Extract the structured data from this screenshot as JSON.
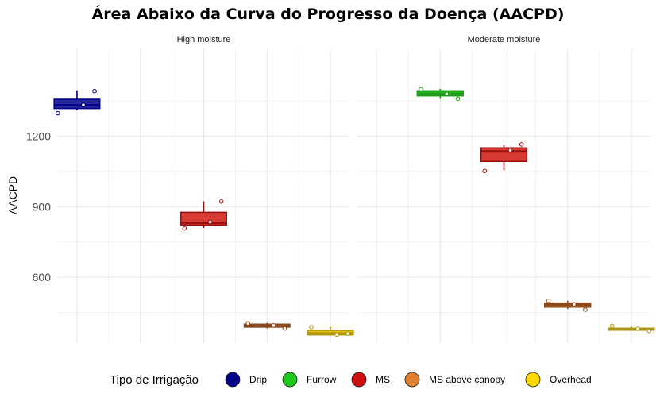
{
  "title": "Área Abaixo da Curva do Progresso da Doença (AACPD)",
  "chart_data": {
    "type": "boxplot",
    "ylabel": "AACPD",
    "xlabel": "",
    "ylim": [
      320,
      1570
    ],
    "yticks": [
      600,
      900,
      1200
    ],
    "grid": true,
    "legend_position": "bottom",
    "legend_title": "Tipo de Irrigação",
    "categories": [
      "Drip",
      "Furrow",
      "MS",
      "MS above canopy",
      "Overhead"
    ],
    "colors": {
      "Drip": {
        "fill": "#27279a",
        "line": "#00008b",
        "legend": "#00008b"
      },
      "Furrow": {
        "fill": "#23b01f",
        "line": "#1c9a18",
        "legend": "#1ec81a"
      },
      "MS": {
        "fill": "#d63a33",
        "line": "#9b0f0f",
        "legend": "#cc1010"
      },
      "MS above canopy": {
        "fill": "#c06a28",
        "line": "#8a4a1c",
        "legend": "#e0802e"
      },
      "Overhead": {
        "fill": "#e2c20c",
        "line": "#b09510",
        "legend": "#ffd800"
      }
    },
    "panels": [
      {
        "name": "High moisture",
        "boxes": [
          {
            "group": "Drip",
            "min": 1310,
            "q1": 1318,
            "median": 1332,
            "q3": 1357,
            "max": 1395,
            "points": [
              1298,
              1392,
              1333
            ]
          },
          {
            "group": "MS",
            "min": 810,
            "q1": 822,
            "median": 832,
            "q3": 876,
            "max": 923,
            "points": [
              808,
              922,
              835
            ]
          },
          {
            "group": "MS above canopy",
            "min": 382,
            "q1": 388,
            "median": 393,
            "q3": 400,
            "max": 406,
            "points": [
              404,
              382,
              395
            ]
          },
          {
            "group": "Overhead",
            "min": 352,
            "q1": 355,
            "median": 361,
            "q3": 374,
            "max": 389,
            "points": [
              388,
              360,
              356
            ]
          }
        ]
      },
      {
        "name": "Moderate moisture",
        "boxes": [
          {
            "group": "Furrow",
            "min": 1359,
            "q1": 1372,
            "median": 1378,
            "q3": 1393,
            "max": 1402,
            "points": [
              1400,
              1359,
              1380
            ]
          },
          {
            "group": "MS",
            "min": 1055,
            "q1": 1093,
            "median": 1135,
            "q3": 1150,
            "max": 1165,
            "points": [
              1052,
              1165,
              1140
            ]
          },
          {
            "group": "MS above canopy",
            "min": 465,
            "q1": 473,
            "median": 482,
            "q3": 490,
            "max": 500,
            "points": [
              500,
              462,
              485
            ]
          },
          {
            "group": "Overhead",
            "min": 372,
            "q1": 375,
            "median": 379,
            "q3": 383,
            "max": 390,
            "points": [
              393,
              372,
              381
            ]
          }
        ]
      }
    ]
  }
}
